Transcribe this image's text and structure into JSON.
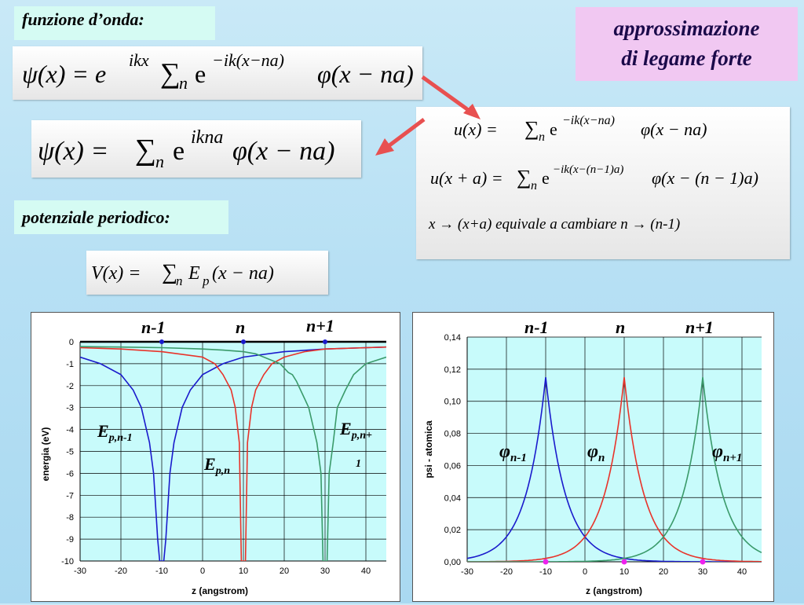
{
  "labels": {
    "wave_function": "funzione d’onda:",
    "periodic_potential": "potenziale periodico:"
  },
  "title": {
    "line1": "approssimazione",
    "line2": "di legame forte"
  },
  "equations": {
    "psi_bloch": {
      "lhs": "ψ(x) = e",
      "sup1": "ikx",
      "sum": "∑",
      "sub": "n",
      "e2": "e",
      "sup2": "−ik(x−na)",
      "tail": "φ(x − na)"
    },
    "psi_sum": {
      "lhs": "ψ(x) = ",
      "sum": "∑",
      "sub": "n",
      "e": "e",
      "sup": "ikna",
      "tail": "φ(x − na)"
    },
    "u_x": {
      "lhs": "u(x) = ",
      "sum": "∑",
      "sub": "n",
      "e": "e",
      "sup": "−ik(x−na)",
      "tail": "φ(x − na)"
    },
    "u_xa": {
      "lhs": "u(x + a) = ",
      "sum": "∑",
      "sub": "n",
      "e": "e",
      "sup": "−ik(x−(n−1)a)",
      "tail": "φ(x − (n − 1)a)"
    },
    "equiv_note": "x → (x+a) equivale a cambiare n → (n-1)",
    "potential": {
      "lhs": "V(x) = ",
      "sum": "∑",
      "sub": "n",
      "E": "E",
      "Esub": "p",
      "tail": "(x − na)"
    }
  },
  "colors": {
    "blue": "#1a1acc",
    "red": "#e8332a",
    "green": "#3a9a6a",
    "plot_bg": "#c8fbfb",
    "arrow": "#e85050"
  },
  "chart_data": [
    {
      "type": "line",
      "site_labels": [
        "n-1",
        "n",
        "n+1"
      ],
      "curve_labels": [
        {
          "main": "E",
          "sub": "p,n-1"
        },
        {
          "main": "E",
          "sub": "p,n"
        },
        {
          "main": "E",
          "sub": "p,n+",
          "sub2": "1"
        }
      ],
      "xlabel": "z (angstrom)",
      "ylabel": "energia (eV)",
      "xlim": [
        -30,
        45
      ],
      "ylim": [
        -10,
        0
      ],
      "xticks": [
        "-30",
        "-20",
        "-10",
        "0",
        "10",
        "20",
        "30",
        "40"
      ],
      "yticks": [
        "0",
        "-1",
        "-2",
        "-3",
        "-4",
        "-5",
        "-6",
        "-7",
        "-8",
        "-9",
        "-10"
      ],
      "series": [
        {
          "color": "blue",
          "x": [
            -30,
            -25,
            -20,
            -17,
            -15,
            -13,
            -12,
            -11,
            -10.5,
            -9.5,
            -9,
            -8,
            -7,
            -5,
            -3,
            0,
            5,
            10,
            20,
            30,
            40,
            45
          ],
          "y": [
            -0.7,
            -1.0,
            -1.5,
            -2.2,
            -3.0,
            -4.6,
            -6.0,
            -9.0,
            -10,
            -10,
            -9.0,
            -6.0,
            -4.6,
            -3.0,
            -2.2,
            -1.5,
            -1.0,
            -0.7,
            -0.45,
            -0.33,
            -0.27,
            -0.24
          ]
        },
        {
          "color": "red",
          "x": [
            -30,
            -20,
            -10,
            0,
            3,
            5,
            7,
            8,
            9,
            9.5,
            10.5,
            11,
            12,
            13,
            15,
            17,
            20,
            25,
            30,
            40,
            45
          ],
          "y": [
            -0.27,
            -0.33,
            -0.45,
            -0.7,
            -1.0,
            -1.5,
            -2.2,
            -3.0,
            -4.6,
            -10,
            -10,
            -4.6,
            -3.0,
            -2.2,
            -1.5,
            -1.0,
            -0.7,
            -0.45,
            -0.33,
            -0.27,
            -0.24
          ]
        },
        {
          "color": "green",
          "x": [
            -30,
            -20,
            -10,
            0,
            5,
            10,
            13,
            15,
            17,
            19,
            20,
            21,
            22,
            23,
            24,
            25,
            26,
            27,
            28,
            29,
            29.5,
            30.5,
            31,
            32,
            33,
            35,
            37,
            40,
            45
          ],
          "y": [
            -0.22,
            -0.24,
            -0.27,
            -0.33,
            -0.38,
            -0.45,
            -0.55,
            -0.7,
            -0.85,
            -1.0,
            -1.2,
            -1.4,
            -1.5,
            -1.8,
            -2.2,
            -2.6,
            -3.0,
            -3.8,
            -4.6,
            -6.0,
            -10,
            -10,
            -6.0,
            -4.6,
            -3.0,
            -2.2,
            -1.5,
            -1.0,
            -0.7
          ]
        }
      ],
      "markers": {
        "x": [
          -10,
          10,
          30
        ],
        "y": [
          0,
          0,
          0
        ]
      }
    },
    {
      "type": "line",
      "site_labels": [
        "n-1",
        "n",
        "n+1"
      ],
      "curve_labels": [
        {
          "main": "φ",
          "sub": "n-1"
        },
        {
          "main": "φ",
          "sub": "n"
        },
        {
          "main": "φ",
          "sub": "n+1"
        }
      ],
      "xlabel": "z (angstrom)",
      "ylabel": "psi - atomica",
      "xlim": [
        -30,
        45
      ],
      "ylim": [
        0,
        0.14
      ],
      "xticks": [
        "-30",
        "-20",
        "-10",
        "0",
        "10",
        "20",
        "30",
        "40"
      ],
      "yticks": [
        "0,00",
        "0,02",
        "0,04",
        "0,06",
        "0,08",
        "0,10",
        "0,12",
        "0,14"
      ],
      "peak": 0.115,
      "decay": 0.2,
      "centers": [
        -10,
        10,
        30
      ],
      "series_colors": [
        "blue",
        "red",
        "green"
      ],
      "markers": {
        "x": [
          -10,
          10,
          30
        ],
        "y": [
          0,
          0,
          0
        ]
      }
    }
  ]
}
